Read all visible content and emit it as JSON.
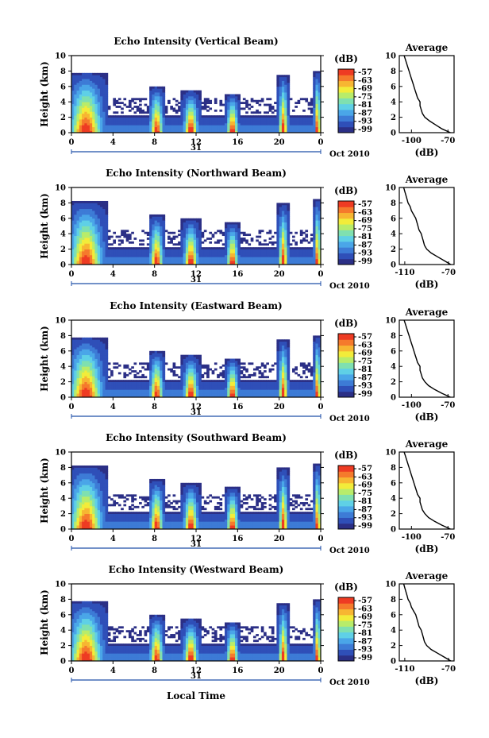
{
  "figure": {
    "xlabel_bottom": "Local Time",
    "date_label": "Oct 2010",
    "day_label": "31"
  },
  "chart_data": [
    {
      "type": "heatmap",
      "title": "Echo Intensity (Vertical Beam)",
      "ylabel": "Height (km)",
      "xticks": [
        "0",
        "4",
        "8",
        "12",
        "16",
        "20",
        "0"
      ],
      "xlim": [
        0,
        24
      ],
      "yticks": [
        "0",
        "2",
        "4",
        "6",
        "8",
        "10"
      ],
      "ylim": [
        0,
        10
      ],
      "colorbar": {
        "unit": "(dB)",
        "ticks": [
          "-57",
          "-63",
          "-69",
          "-75",
          "-81",
          "-87",
          "-93",
          "-99"
        ]
      },
      "avg_profile": {
        "title": "Average",
        "xlabel": "(dB)",
        "xticks": [
          "-100",
          "-70"
        ],
        "xlim": [
          -110,
          -65
        ],
        "profile": [
          [
            -68,
            0
          ],
          [
            -75,
            0.5
          ],
          [
            -80,
            1
          ],
          [
            -85,
            1.5
          ],
          [
            -89,
            2
          ],
          [
            -91,
            2.5
          ],
          [
            -92,
            3
          ],
          [
            -93,
            3.5
          ],
          [
            -93,
            4
          ],
          [
            -95,
            4.5
          ],
          [
            -96,
            5
          ],
          [
            -97,
            5.5
          ],
          [
            -98,
            6
          ],
          [
            -99,
            6.5
          ],
          [
            -100,
            7
          ],
          [
            -101,
            7.5
          ],
          [
            -102,
            8
          ],
          [
            -103,
            8.5
          ],
          [
            -104,
            9
          ],
          [
            -105,
            9.5
          ],
          [
            -106,
            10
          ]
        ]
      }
    },
    {
      "type": "heatmap",
      "title": "Echo Intensity (Northward Beam)",
      "ylabel": "Height (km)",
      "xticks": [
        "0",
        "4",
        "8",
        "12",
        "16",
        "20",
        "0"
      ],
      "xlim": [
        0,
        24
      ],
      "yticks": [
        "0",
        "2",
        "4",
        "6",
        "8",
        "10"
      ],
      "ylim": [
        0,
        10
      ],
      "colorbar": {
        "unit": "(dB)",
        "ticks": [
          "-57",
          "-63",
          "-69",
          "-75",
          "-81",
          "-87",
          "-93",
          "-99"
        ]
      },
      "avg_profile": {
        "title": "Average",
        "xlabel": "(dB)",
        "xticks": [
          "-110",
          "-70"
        ],
        "xlim": [
          -115,
          -65
        ],
        "profile": [
          [
            -68,
            0
          ],
          [
            -74,
            0.5
          ],
          [
            -80,
            1
          ],
          [
            -86,
            1.5
          ],
          [
            -90,
            2
          ],
          [
            -92,
            2.5
          ],
          [
            -93,
            3
          ],
          [
            -94,
            3.5
          ],
          [
            -95,
            4
          ],
          [
            -97,
            4.5
          ],
          [
            -98,
            5
          ],
          [
            -99,
            5.5
          ],
          [
            -100,
            6
          ],
          [
            -102,
            6.5
          ],
          [
            -104,
            7
          ],
          [
            -105,
            7.5
          ],
          [
            -107,
            8
          ],
          [
            -108,
            8.5
          ],
          [
            -109,
            9
          ],
          [
            -110,
            9.5
          ],
          [
            -111,
            10
          ]
        ]
      }
    },
    {
      "type": "heatmap",
      "title": "Echo Intensity (Eastward Beam)",
      "ylabel": "Height (km)",
      "xticks": [
        "0",
        "4",
        "8",
        "12",
        "16",
        "20",
        "0"
      ],
      "xlim": [
        0,
        24
      ],
      "yticks": [
        "0",
        "2",
        "4",
        "6",
        "8",
        "10"
      ],
      "ylim": [
        0,
        10
      ],
      "colorbar": {
        "unit": "(dB)",
        "ticks": [
          "-57",
          "-63",
          "-69",
          "-75",
          "-81",
          "-87",
          "-93",
          "-99"
        ]
      },
      "avg_profile": {
        "title": "Average",
        "xlabel": "(dB)",
        "xticks": [
          "-100",
          "-70"
        ],
        "xlim": [
          -110,
          -65
        ],
        "profile": [
          [
            -68,
            0
          ],
          [
            -75,
            0.5
          ],
          [
            -81,
            1
          ],
          [
            -86,
            1.5
          ],
          [
            -89,
            2
          ],
          [
            -91,
            2.5
          ],
          [
            -92,
            3
          ],
          [
            -93,
            3.5
          ],
          [
            -93,
            4
          ],
          [
            -95,
            4.5
          ],
          [
            -96,
            5
          ],
          [
            -97,
            5.5
          ],
          [
            -98,
            6
          ],
          [
            -99,
            6.5
          ],
          [
            -100,
            7
          ],
          [
            -101,
            7.5
          ],
          [
            -102,
            8
          ],
          [
            -103,
            8.5
          ],
          [
            -104,
            9
          ],
          [
            -105,
            9.5
          ],
          [
            -106,
            10
          ]
        ]
      }
    },
    {
      "type": "heatmap",
      "title": "Echo Intensity (Southward Beam)",
      "ylabel": "Height (km)",
      "xticks": [
        "0",
        "4",
        "8",
        "12",
        "16",
        "20",
        "0"
      ],
      "xlim": [
        0,
        24
      ],
      "yticks": [
        "0",
        "2",
        "4",
        "6",
        "8",
        "10"
      ],
      "ylim": [
        0,
        10
      ],
      "colorbar": {
        "unit": "(dB)",
        "ticks": [
          "-57",
          "-63",
          "-69",
          "-75",
          "-81",
          "-87",
          "-93",
          "-99"
        ]
      },
      "avg_profile": {
        "title": "Average",
        "xlabel": "(dB)",
        "xticks": [
          "-100",
          "-70"
        ],
        "xlim": [
          -110,
          -65
        ],
        "profile": [
          [
            -68,
            0
          ],
          [
            -75,
            0.5
          ],
          [
            -81,
            1
          ],
          [
            -86,
            1.5
          ],
          [
            -89,
            2
          ],
          [
            -91,
            2.5
          ],
          [
            -92,
            3
          ],
          [
            -93,
            3.5
          ],
          [
            -93,
            4
          ],
          [
            -95,
            4.5
          ],
          [
            -96,
            5
          ],
          [
            -97,
            5.5
          ],
          [
            -98,
            6
          ],
          [
            -99,
            6.5
          ],
          [
            -100,
            7
          ],
          [
            -101,
            7.5
          ],
          [
            -102,
            8
          ],
          [
            -103,
            8.5
          ],
          [
            -104,
            9
          ],
          [
            -105,
            9.5
          ],
          [
            -106,
            10
          ]
        ]
      }
    },
    {
      "type": "heatmap",
      "title": "Echo Intensity (Westward Beam)",
      "ylabel": "Height (km)",
      "xticks": [
        "0",
        "4",
        "8",
        "12",
        "16",
        "20",
        "0"
      ],
      "xlim": [
        0,
        24
      ],
      "yticks": [
        "0",
        "2",
        "4",
        "6",
        "8",
        "10"
      ],
      "ylim": [
        0,
        10
      ],
      "colorbar": {
        "unit": "(dB)",
        "ticks": [
          "-57",
          "-63",
          "-69",
          "-75",
          "-81",
          "-87",
          "-93",
          "-99"
        ]
      },
      "avg_profile": {
        "title": "Average",
        "xlabel": "(dB)",
        "xticks": [
          "-110",
          "-70"
        ],
        "xlim": [
          -115,
          -65
        ],
        "profile": [
          [
            -68,
            0
          ],
          [
            -74,
            0.5
          ],
          [
            -80,
            1
          ],
          [
            -86,
            1.5
          ],
          [
            -90,
            2
          ],
          [
            -92,
            2.5
          ],
          [
            -93,
            3
          ],
          [
            -94,
            3.5
          ],
          [
            -95,
            4
          ],
          [
            -97,
            4.5
          ],
          [
            -98,
            5
          ],
          [
            -99,
            5.5
          ],
          [
            -100,
            6
          ],
          [
            -102,
            6.5
          ],
          [
            -104,
            7
          ],
          [
            -105,
            7.5
          ],
          [
            -107,
            8
          ],
          [
            -108,
            8.5
          ],
          [
            -109,
            9
          ],
          [
            -110,
            9.5
          ],
          [
            -111,
            10
          ]
        ]
      }
    }
  ],
  "colors": {
    "colormap": [
      "#2b2f86",
      "#2f4fb8",
      "#3d7bd6",
      "#4aa6e8",
      "#5fd0e6",
      "#7fe0b0",
      "#b8ec6a",
      "#f2ec3a",
      "#f7b632",
      "#f57a2c",
      "#ee3b23"
    ],
    "axis": "#000000",
    "day_bar": "#1f4fa8"
  }
}
